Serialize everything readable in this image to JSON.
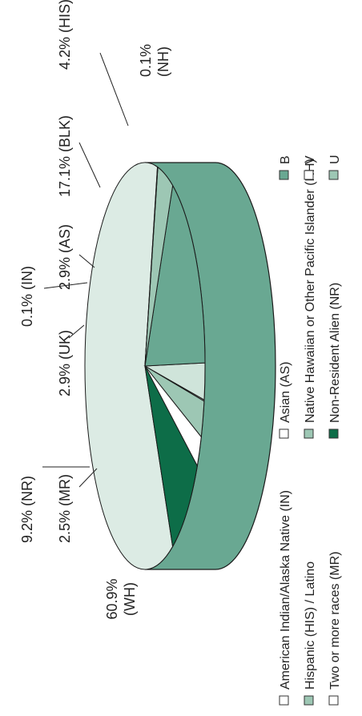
{
  "chart_data": {
    "type": "pie",
    "title": "",
    "slices": [
      {
        "code": "WH",
        "label": "60.9%",
        "label2": "(WH)",
        "value": 60.9,
        "color": "#dcebe4"
      },
      {
        "code": "NR",
        "label": "9.2% (NR)",
        "value": 9.2,
        "color": "#0d6d48"
      },
      {
        "code": "MR",
        "label": "2.5% (MR)",
        "value": 2.5,
        "color": "#ffffff"
      },
      {
        "code": "UK",
        "label": "2.9% (UK)",
        "value": 2.9,
        "color": "#9dc7b4"
      },
      {
        "code": "IN",
        "label": "0.1% (IN)",
        "value": 0.1,
        "color": "#ffffff"
      },
      {
        "code": "AS",
        "label": "2.9% (AS)",
        "value": 2.9,
        "color": "#cfe4da"
      },
      {
        "code": "BLK",
        "label": "17.1% (BLK)",
        "value": 17.1,
        "color": "#69a892"
      },
      {
        "code": "HIS",
        "label": "4.2% (HIS)",
        "value": 4.2,
        "color": "#9dc7b4"
      },
      {
        "code": "NH",
        "label": "0.1%",
        "label2": "(NH)",
        "value": 0.1,
        "color": "#9dc7b4"
      }
    ],
    "rim_color": "#69a892",
    "legend": [
      {
        "label": "American Indian/Alaska Native (IN)",
        "color": "#ffffff"
      },
      {
        "label": "Hispanic (HIS) / Latino",
        "color": "#9dc7b4"
      },
      {
        "label": "Two or more races (MR)",
        "color": "#ffffff"
      },
      {
        "label": "Asian (AS)",
        "color": "#ffffff"
      },
      {
        "label": "Native Hawaiian or Other Pacific Islander (NH)",
        "color": "#9dc7b4"
      },
      {
        "label": "Non-Resident Alien (NR)",
        "color": "#0d6d48"
      },
      {
        "label": "B",
        "color": "#69a892"
      },
      {
        "label": "V",
        "color": "#ffffff"
      },
      {
        "label": "U",
        "color": "#9dc7b4"
      }
    ],
    "legend_position": "bottom (rotated, partially cropped)"
  }
}
